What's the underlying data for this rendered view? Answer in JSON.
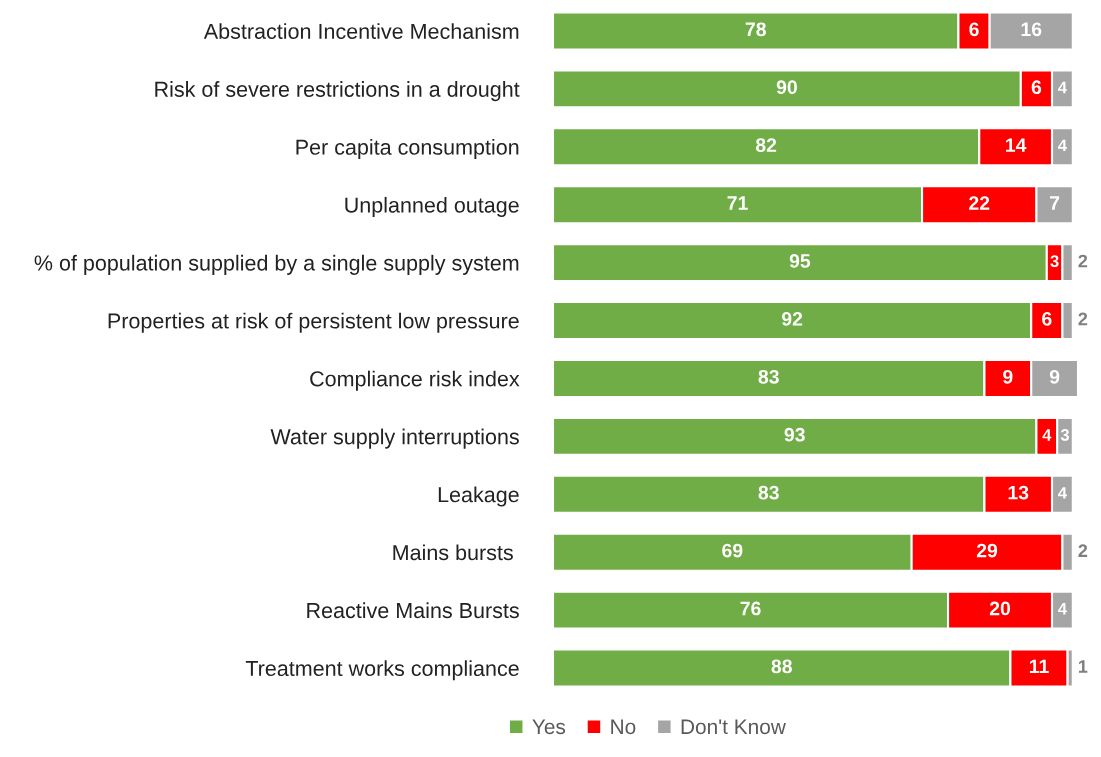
{
  "chart_data": {
    "type": "bar",
    "orientation": "horizontal",
    "stacked": true,
    "data_labels": true,
    "legend": "bottom",
    "grid": false,
    "tick_labels": "y",
    "categories": [
      "Abstraction Incentive Mechanism",
      "Risk of severe restrictions in a drought",
      "Per capita consumption",
      "Unplanned outage",
      "% of population supplied by a single supply system",
      "Properties at risk of persistent low pressure",
      "Compliance risk index",
      "Water supply interruptions",
      "Leakage",
      "Mains bursts ",
      "Reactive Mains Bursts",
      "Treatment works compliance"
    ],
    "series": [
      {
        "name": "Yes",
        "color": "#70ad47",
        "values": [
          78,
          90,
          82,
          71,
          95,
          92,
          83,
          93,
          83,
          69,
          76,
          88
        ]
      },
      {
        "name": "No",
        "color": "#ff0000",
        "values": [
          6,
          6,
          14,
          22,
          3,
          6,
          9,
          4,
          13,
          29,
          20,
          11
        ]
      },
      {
        "name": "Don't Know",
        "color": "#a5a5a5",
        "values": [
          16,
          4,
          4,
          7,
          2,
          2,
          9,
          3,
          4,
          2,
          4,
          1
        ]
      }
    ]
  }
}
